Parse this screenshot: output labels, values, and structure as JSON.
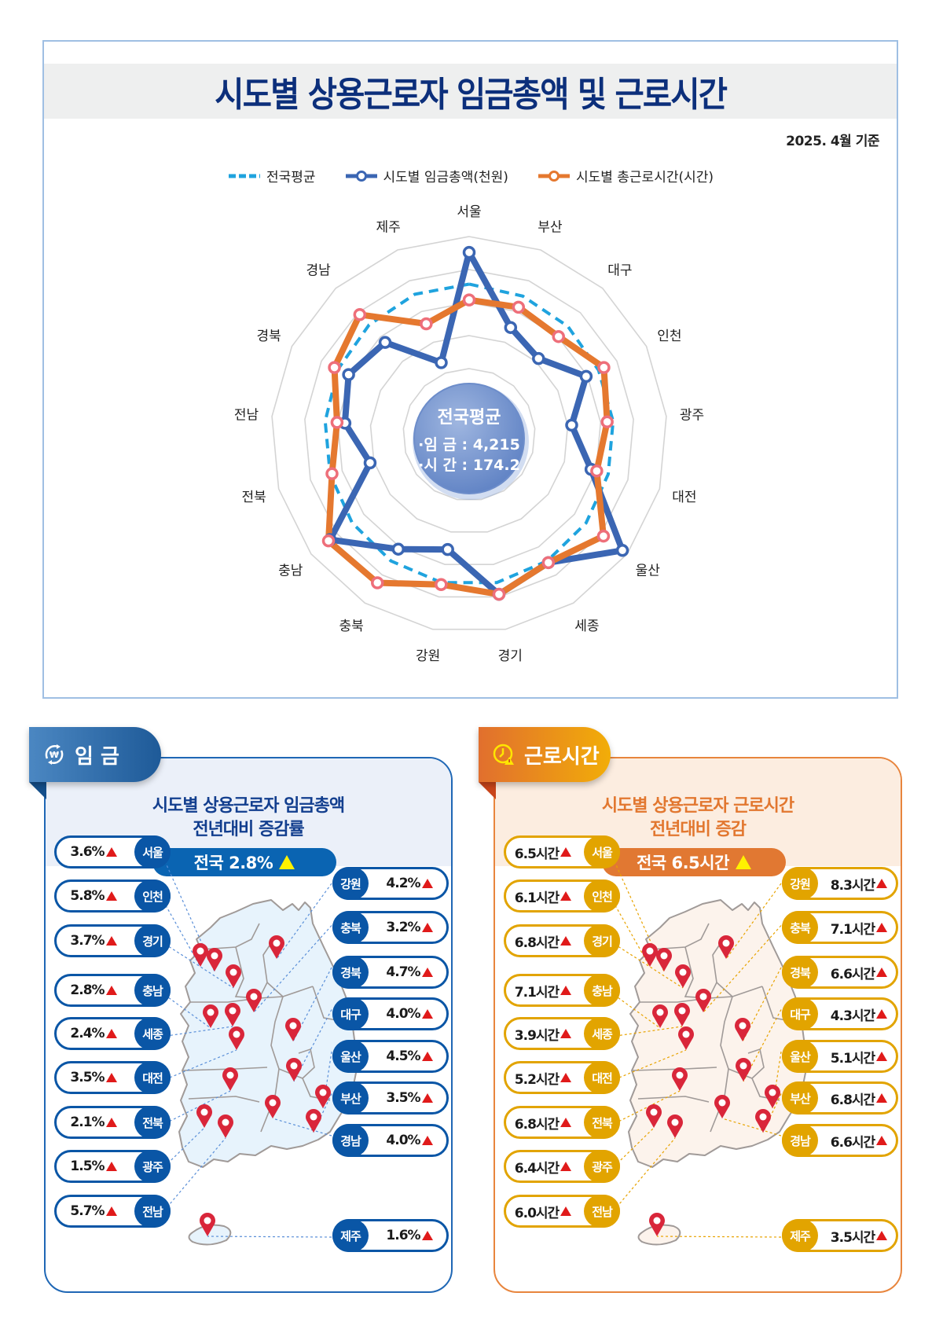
{
  "header": {
    "title": "시도별 상용근로자 임금총액 및 근로시간",
    "basis_date": "2025. 4월 기준"
  },
  "legend": [
    {
      "label": "전국평균",
      "style": "dashed",
      "color": "#1fa3de"
    },
    {
      "label": "시도별 임금총액(천원)",
      "style": "line-marker",
      "color": "#3b66b3"
    },
    {
      "label": "시도별 총근로시간(시간)",
      "style": "line-marker",
      "color": "#e5782f"
    }
  ],
  "center_badge": {
    "title": "전국평균",
    "wage_line": "·임 금 : 4,215",
    "hours_line": "·시 간 : 174.2"
  },
  "chart_data": {
    "type": "radar",
    "title": "시도별 상용근로자 임금총액 및 근로시간",
    "subtitle": "2025. 4월 기준",
    "categories": [
      "서울",
      "부산",
      "대구",
      "인천",
      "광주",
      "대전",
      "울산",
      "세종",
      "경기",
      "강원",
      "충북",
      "충남",
      "전북",
      "전남",
      "경북",
      "경남",
      "제주"
    ],
    "national_average": {
      "wage_thousand_won": 4215,
      "hours": 174.2
    },
    "scale_note": "values are normalized radii (0-1) read from the plot; no axis ticks shown",
    "rings": 6,
    "grid": true,
    "legend_position": "top",
    "series": [
      {
        "name": "전국평균",
        "style": "dashed",
        "color": "#1fa3de",
        "values": [
          0.76,
          0.75,
          0.74,
          0.73,
          0.73,
          0.73,
          0.74,
          0.75,
          0.76,
          0.76,
          0.75,
          0.74,
          0.73,
          0.73,
          0.74,
          0.75,
          0.76
        ]
      },
      {
        "name": "시도별 임금총액(천원)",
        "color": "#3b66b3",
        "values": [
          0.92,
          0.58,
          0.52,
          0.66,
          0.52,
          0.64,
          0.97,
          0.76,
          0.82,
          0.59,
          0.68,
          0.88,
          0.52,
          0.63,
          0.68,
          0.63,
          0.39
        ]
      },
      {
        "name": "시도별 총근로시간(시간)",
        "color": "#e5782f",
        "values": [
          0.68,
          0.69,
          0.67,
          0.76,
          0.7,
          0.67,
          0.85,
          0.76,
          0.82,
          0.77,
          0.88,
          0.89,
          0.72,
          0.67,
          0.76,
          0.82,
          0.6
        ]
      }
    ]
  },
  "wage_panel": {
    "tab_label": "임 금",
    "subtitle_line1": "시도별 상용근로자 임금총액",
    "subtitle_line2": "전년대비 증감률",
    "national": "전국 2.8%",
    "left": [
      {
        "region": "서울",
        "value": "3.6%"
      },
      {
        "region": "인천",
        "value": "5.8%"
      },
      {
        "region": "경기",
        "value": "3.7%"
      },
      {
        "region": "충남",
        "value": "2.8%"
      },
      {
        "region": "세종",
        "value": "2.4%"
      },
      {
        "region": "대전",
        "value": "3.5%"
      },
      {
        "region": "전북",
        "value": "2.1%"
      },
      {
        "region": "광주",
        "value": "1.5%"
      },
      {
        "region": "전남",
        "value": "5.7%"
      }
    ],
    "right": [
      {
        "region": "강원",
        "value": "4.2%"
      },
      {
        "region": "충북",
        "value": "3.2%"
      },
      {
        "region": "경북",
        "value": "4.7%"
      },
      {
        "region": "대구",
        "value": "4.0%"
      },
      {
        "region": "울산",
        "value": "4.5%"
      },
      {
        "region": "부산",
        "value": "3.5%"
      },
      {
        "region": "경남",
        "value": "4.0%"
      },
      {
        "region": "제주",
        "value": "1.6%"
      }
    ]
  },
  "hours_panel": {
    "tab_label": "근로시간",
    "subtitle_line1": "시도별 상용근로자 근로시간",
    "subtitle_line2": "전년대비 증감",
    "national": "전국 6.5시간",
    "left": [
      {
        "region": "서울",
        "value": "6.5시간"
      },
      {
        "region": "인천",
        "value": "6.1시간"
      },
      {
        "region": "경기",
        "value": "6.8시간"
      },
      {
        "region": "충남",
        "value": "7.1시간"
      },
      {
        "region": "세종",
        "value": "3.9시간"
      },
      {
        "region": "대전",
        "value": "5.2시간"
      },
      {
        "region": "전북",
        "value": "6.8시간"
      },
      {
        "region": "광주",
        "value": "6.4시간"
      },
      {
        "region": "전남",
        "value": "6.0시간"
      }
    ],
    "right": [
      {
        "region": "강원",
        "value": "8.3시간"
      },
      {
        "region": "충북",
        "value": "7.1시간"
      },
      {
        "region": "경북",
        "value": "6.6시간"
      },
      {
        "region": "대구",
        "value": "4.3시간"
      },
      {
        "region": "울산",
        "value": "5.1시간"
      },
      {
        "region": "부산",
        "value": "6.8시간"
      },
      {
        "region": "경남",
        "value": "6.6시간"
      },
      {
        "region": "제주",
        "value": "3.5시간"
      }
    ]
  },
  "colors": {
    "title_navy": "#0c2f7b",
    "wage_blue": "#0a56a6",
    "hours_gold": "#e2a400",
    "hours_orange": "#e17832",
    "increase_red": "#e01a1a",
    "pin_red": "#d9263a"
  }
}
